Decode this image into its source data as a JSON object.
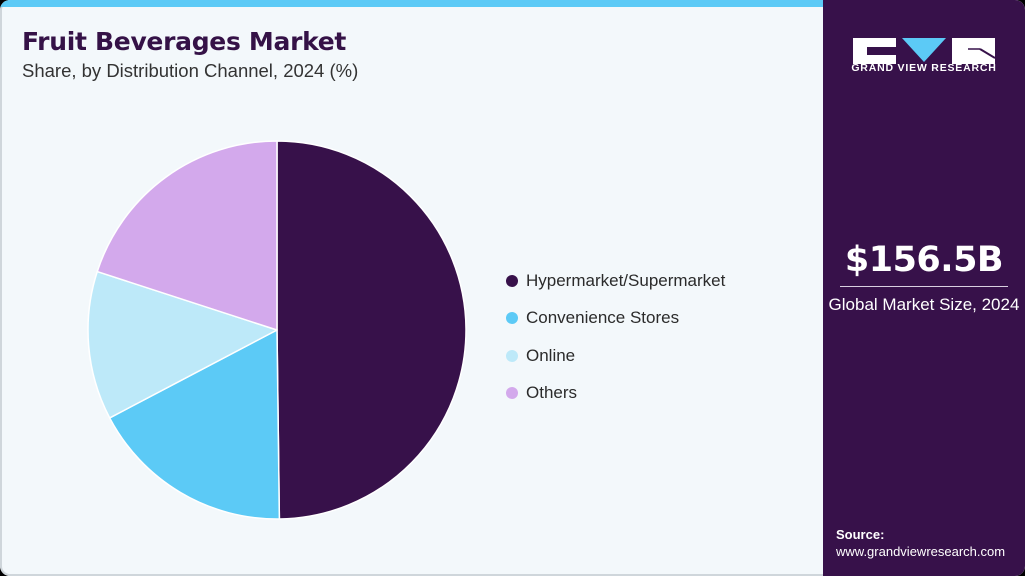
{
  "header": {
    "title": "Fruit Beverages Market",
    "subtitle": "Share, by Distribution Channel, 2024 (%)"
  },
  "colors": {
    "accent_bar": "#5ccaf6",
    "sidebar_bg": "#37114a",
    "page_bg": "#f3f8fb"
  },
  "legend": [
    {
      "label": "Hypermarket/Supermarket",
      "color": "#37114a"
    },
    {
      "label": "Convenience Stores",
      "color": "#5ccaf6"
    },
    {
      "label": "Online",
      "color": "#bde9f9"
    },
    {
      "label": "Others",
      "color": "#d3a9ec"
    }
  ],
  "sidebar": {
    "logo_text": "GRAND VIEW RESEARCH",
    "market_value": "$156.5B",
    "market_label": "Global Market Size, 2024",
    "source_label": "Source:",
    "source_url": "www.grandviewresearch.com"
  },
  "chart_data": {
    "type": "pie",
    "title": "Fruit Beverages Market",
    "subtitle": "Share, by Distribution Channel, 2024 (%)",
    "categories": [
      "Hypermarket/Supermarket",
      "Convenience Stores",
      "Online",
      "Others"
    ],
    "values": [
      49.8,
      17.5,
      12.7,
      20.0
    ],
    "colors": [
      "#37114a",
      "#5ccaf6",
      "#bde9f9",
      "#d3a9ec"
    ],
    "start_angle": "top (12 o'clock), clockwise",
    "legend_position": "right",
    "data_labels": false
  }
}
